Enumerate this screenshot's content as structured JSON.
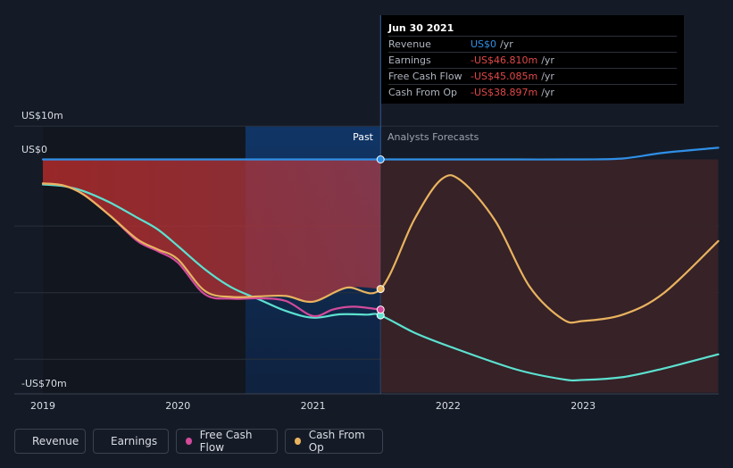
{
  "chart_data": {
    "type": "line",
    "x_ticks": [
      "2019",
      "2020",
      "2021",
      "2022",
      "2023"
    ],
    "y_labels": {
      "top": "US$10m",
      "zero": "US$0",
      "bottom": "-US$70m"
    },
    "ylim": [
      -70,
      10
    ],
    "xlim": [
      2019.0,
      2024.0
    ],
    "past_label": "Past",
    "forecast_label": "Analysts Forecasts",
    "divider_x": 2021.5,
    "series": [
      {
        "name": "Revenue",
        "color": "#2f8fe6",
        "points": [
          [
            2019.0,
            0
          ],
          [
            2019.5,
            0
          ],
          [
            2020.0,
            0
          ],
          [
            2020.5,
            0
          ],
          [
            2021.0,
            0
          ],
          [
            2021.5,
            0
          ],
          [
            2022.0,
            0
          ],
          [
            2022.5,
            0
          ],
          [
            2023.0,
            0
          ],
          [
            2023.3,
            0.3
          ],
          [
            2023.6,
            2.0
          ],
          [
            2024.0,
            3.5
          ]
        ]
      },
      {
        "name": "Earnings",
        "color": "#5ce1d0",
        "points": [
          [
            2019.0,
            -7.5
          ],
          [
            2019.15,
            -8
          ],
          [
            2019.3,
            -9.5
          ],
          [
            2019.5,
            -13
          ],
          [
            2019.7,
            -17.5
          ],
          [
            2019.85,
            -21
          ],
          [
            2020.0,
            -26
          ],
          [
            2020.2,
            -33
          ],
          [
            2020.4,
            -38.5
          ],
          [
            2020.6,
            -42
          ],
          [
            2020.8,
            -45.5
          ],
          [
            2021.0,
            -47.5
          ],
          [
            2021.2,
            -46.5
          ],
          [
            2021.4,
            -46.6
          ],
          [
            2021.5,
            -46.81
          ],
          [
            2021.75,
            -52
          ],
          [
            2022.0,
            -56
          ],
          [
            2022.5,
            -63
          ],
          [
            2022.85,
            -66
          ],
          [
            2023.0,
            -66.2
          ],
          [
            2023.3,
            -65.3
          ],
          [
            2023.6,
            -62.7
          ],
          [
            2024.0,
            -58.5
          ]
        ]
      },
      {
        "name": "Free Cash Flow",
        "color": "#d44a9a",
        "points": [
          [
            2019.0,
            -7.2
          ],
          [
            2019.15,
            -7.8
          ],
          [
            2019.3,
            -10.5
          ],
          [
            2019.5,
            -17
          ],
          [
            2019.7,
            -24.5
          ],
          [
            2019.85,
            -27.5
          ],
          [
            2020.0,
            -31
          ],
          [
            2020.2,
            -40.5
          ],
          [
            2020.4,
            -41.8
          ],
          [
            2020.6,
            -41.7
          ],
          [
            2020.8,
            -42.5
          ],
          [
            2021.0,
            -47
          ],
          [
            2021.15,
            -45
          ],
          [
            2021.3,
            -44.2
          ],
          [
            2021.5,
            -45.085
          ]
        ]
      },
      {
        "name": "Cash From Op",
        "color": "#e9b35f",
        "points": [
          [
            2019.0,
            -7.2
          ],
          [
            2019.15,
            -7.8
          ],
          [
            2019.3,
            -10.5
          ],
          [
            2019.5,
            -17
          ],
          [
            2019.7,
            -24
          ],
          [
            2019.85,
            -27
          ],
          [
            2020.0,
            -30
          ],
          [
            2020.2,
            -39.5
          ],
          [
            2020.4,
            -41.3
          ],
          [
            2020.6,
            -41.1
          ],
          [
            2020.8,
            -41
          ],
          [
            2021.0,
            -42.7
          ],
          [
            2021.25,
            -38.5
          ],
          [
            2021.5,
            -38.897
          ],
          [
            2021.75,
            -18
          ],
          [
            2021.95,
            -6
          ],
          [
            2022.1,
            -6.5
          ],
          [
            2022.35,
            -18.5
          ],
          [
            2022.6,
            -38
          ],
          [
            2022.85,
            -48
          ],
          [
            2023.0,
            -48.5
          ],
          [
            2023.3,
            -46.5
          ],
          [
            2023.6,
            -40
          ],
          [
            2024.0,
            -24.5
          ]
        ]
      }
    ],
    "legend": [
      "Revenue",
      "Earnings",
      "Free Cash Flow",
      "Cash From Op"
    ],
    "tooltip": {
      "date": "Jun 30 2021",
      "rows": [
        {
          "label": "Revenue",
          "value": "US$0",
          "unit": "/yr",
          "color": "#2f8fe6"
        },
        {
          "label": "Earnings",
          "value": "-US$46.810m",
          "unit": "/yr",
          "color": "#e04848"
        },
        {
          "label": "Free Cash Flow",
          "value": "-US$45.085m",
          "unit": "/yr",
          "color": "#e04848"
        },
        {
          "label": "Cash From Op",
          "value": "-US$38.897m",
          "unit": "/yr",
          "color": "#e04848"
        }
      ]
    }
  }
}
